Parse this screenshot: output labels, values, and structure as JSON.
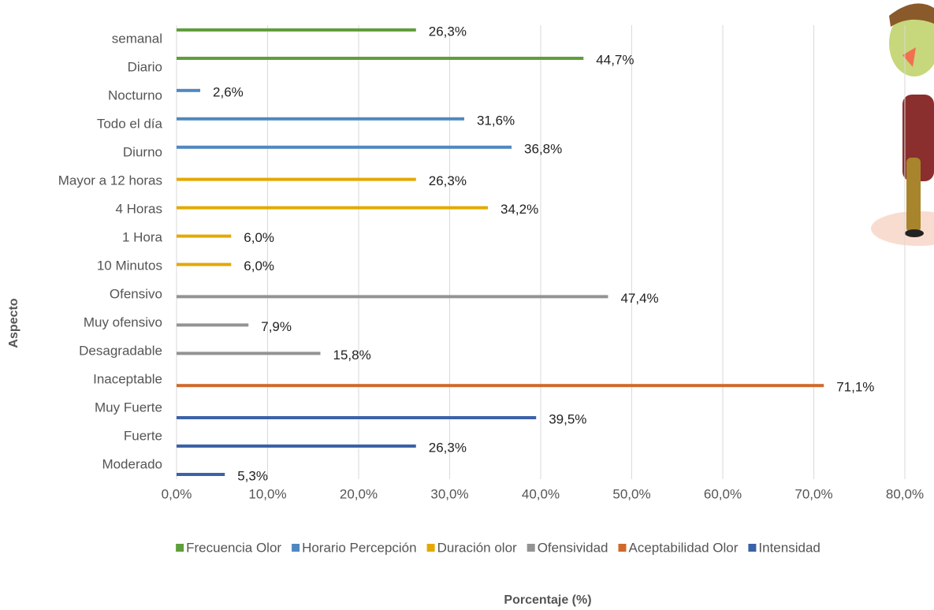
{
  "chart_data": {
    "type": "bar",
    "orientation": "horizontal",
    "categories": [
      "semanal",
      "Diario",
      "Nocturno",
      "Todo el día",
      "Diurno",
      "Mayor a 12 horas",
      "4 Horas",
      "1 Hora",
      "10 Minutos",
      "Ofensivo",
      "Muy ofensivo",
      "Desagradable",
      "Inaceptable",
      "Muy Fuerte",
      "Fuerte",
      "Moderado"
    ],
    "series": [
      {
        "name": "Frecuencia Olor",
        "color": "#5f9e3c",
        "values": [
          26.3,
          44.7,
          null,
          null,
          null,
          null,
          null,
          null,
          null,
          null,
          null,
          null,
          null,
          null,
          null,
          null
        ],
        "value_labels": [
          "26,3%",
          "44,7%",
          null,
          null,
          null,
          null,
          null,
          null,
          null,
          null,
          null,
          null,
          null,
          null,
          null,
          null
        ]
      },
      {
        "name": "Horario Percepción",
        "color": "#4f88c0",
        "values": [
          null,
          null,
          2.6,
          31.6,
          36.8,
          null,
          null,
          null,
          null,
          null,
          null,
          null,
          null,
          null,
          null,
          null
        ],
        "value_labels": [
          null,
          null,
          "2,6%",
          "31,6%",
          "36,8%",
          null,
          null,
          null,
          null,
          null,
          null,
          null,
          null,
          null,
          null,
          null
        ]
      },
      {
        "name": "Duración olor",
        "color": "#e3a900",
        "values": [
          null,
          null,
          null,
          null,
          null,
          26.3,
          34.2,
          6.0,
          6.0,
          null,
          null,
          null,
          null,
          null,
          null,
          null
        ],
        "value_labels": [
          null,
          null,
          null,
          null,
          null,
          "26,3%",
          "34,2%",
          "6,0%",
          "6,0%",
          null,
          null,
          null,
          null,
          null,
          null,
          null
        ]
      },
      {
        "name": "Ofensividad",
        "color": "#939393",
        "values": [
          null,
          null,
          null,
          null,
          null,
          null,
          null,
          null,
          null,
          47.4,
          7.9,
          15.8,
          null,
          null,
          null,
          null
        ],
        "value_labels": [
          null,
          null,
          null,
          null,
          null,
          null,
          null,
          null,
          null,
          "47,4%",
          "7,9%",
          "15,8%",
          null,
          null,
          null,
          null
        ]
      },
      {
        "name": "Aceptabilidad Olor",
        "color": "#cf6a2c",
        "values": [
          null,
          null,
          null,
          null,
          null,
          null,
          null,
          null,
          null,
          null,
          null,
          null,
          71.1,
          null,
          null,
          null
        ],
        "value_labels": [
          null,
          null,
          null,
          null,
          null,
          null,
          null,
          null,
          null,
          null,
          null,
          null,
          "71,1%",
          null,
          null,
          null
        ]
      },
      {
        "name": "Intensidad",
        "color": "#3b62a8",
        "values": [
          null,
          null,
          null,
          null,
          null,
          null,
          null,
          null,
          null,
          null,
          null,
          null,
          null,
          39.5,
          26.3,
          5.3
        ],
        "value_labels": [
          null,
          null,
          null,
          null,
          null,
          null,
          null,
          null,
          null,
          null,
          null,
          null,
          null,
          "39,5%",
          "26,3%",
          "5,3%"
        ]
      }
    ],
    "xlim": [
      0,
      80
    ],
    "xticks": [
      {
        "value": 0,
        "label": "0,0%"
      },
      {
        "value": 10,
        "label": "10,0%"
      },
      {
        "value": 20,
        "label": "20,0%"
      },
      {
        "value": 30,
        "label": "30,0%"
      },
      {
        "value": 40,
        "label": "40,0%"
      },
      {
        "value": 50,
        "label": "50,0%"
      },
      {
        "value": 60,
        "label": "60,0%"
      },
      {
        "value": 70,
        "label": "70,0%"
      },
      {
        "value": 80,
        "label": "80,0%"
      }
    ],
    "x_label": "Porcentaje (%)",
    "y_label": "Aspecto",
    "grid": true,
    "legend": "bottom"
  }
}
